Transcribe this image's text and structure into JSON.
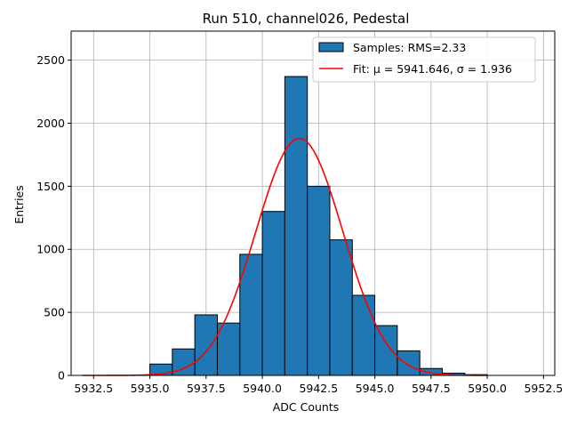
{
  "chart_data": {
    "type": "bar",
    "title": "Run 510, channel026, Pedestal",
    "xlabel": "ADC Counts",
    "ylabel": "Entries",
    "xlim": [
      5931.5,
      5953.0
    ],
    "ylim": [
      0,
      2730
    ],
    "x_ticks": [
      5932.5,
      5935.0,
      5937.5,
      5940.0,
      5942.5,
      5945.0,
      5947.5,
      5950.0,
      5952.5
    ],
    "x_tick_labels": [
      "5932.5",
      "5935.0",
      "5937.5",
      "5940.0",
      "5942.5",
      "5945.0",
      "5947.5",
      "5950.0",
      "5952.5"
    ],
    "y_ticks": [
      0,
      500,
      1000,
      1500,
      2000,
      2500
    ],
    "y_tick_labels": [
      "0",
      "500",
      "1000",
      "1500",
      "2000",
      "2500"
    ],
    "grid": true,
    "legend_position": "top-right",
    "histogram": {
      "name": "Samples: RMS=2.33",
      "color": "#1f77b4",
      "edge_color": "#000000",
      "bins": [
        {
          "x0": 5935.0,
          "x1": 5936.0,
          "value": 90
        },
        {
          "x0": 5936.0,
          "x1": 5937.0,
          "value": 210
        },
        {
          "x0": 5937.0,
          "x1": 5938.0,
          "value": 480
        },
        {
          "x0": 5938.0,
          "x1": 5939.0,
          "value": 415
        },
        {
          "x0": 5939.0,
          "x1": 5940.0,
          "value": 960
        },
        {
          "x0": 5940.0,
          "x1": 5941.0,
          "value": 1300
        },
        {
          "x0": 5941.0,
          "x1": 5942.0,
          "value": 2370
        },
        {
          "x0": 5942.0,
          "x1": 5943.0,
          "value": 1500
        },
        {
          "x0": 5943.0,
          "x1": 5944.0,
          "value": 1075
        },
        {
          "x0": 5944.0,
          "x1": 5945.0,
          "value": 635
        },
        {
          "x0": 5945.0,
          "x1": 5946.0,
          "value": 395
        },
        {
          "x0": 5946.0,
          "x1": 5947.0,
          "value": 195
        },
        {
          "x0": 5947.0,
          "x1": 5948.0,
          "value": 55
        },
        {
          "x0": 5948.0,
          "x1": 5949.0,
          "value": 18
        },
        {
          "x0": 5949.0,
          "x1": 5950.0,
          "value": 6
        }
      ]
    },
    "fit": {
      "name": "Fit: μ = 5941.646, σ = 1.936",
      "color": "#ff0000",
      "mu": 5941.646,
      "sigma": 1.936,
      "amplitude": 1880,
      "x_range": [
        5932.0,
        5950.0
      ]
    }
  }
}
